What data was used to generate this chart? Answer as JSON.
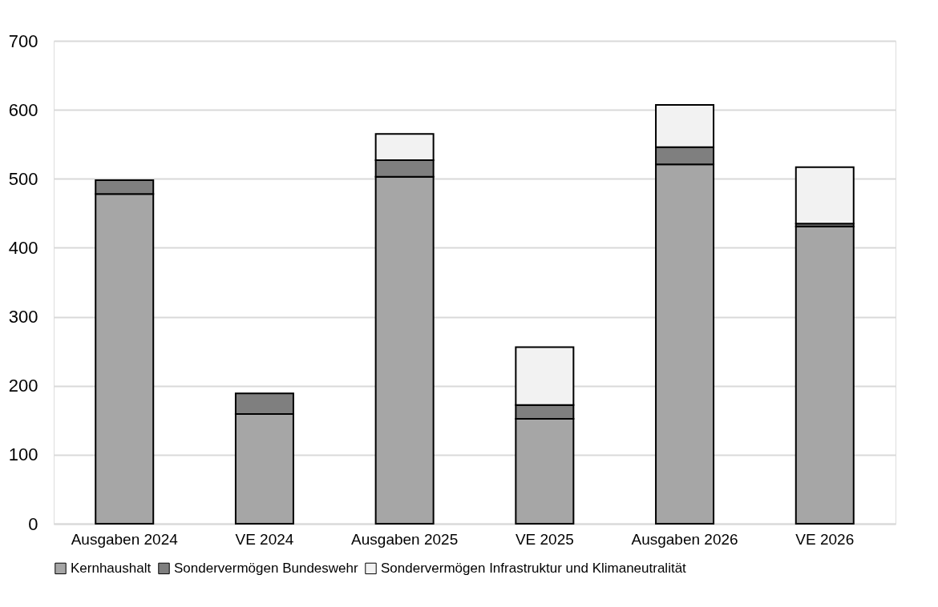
{
  "chart_data": {
    "type": "bar",
    "stacked": true,
    "categories": [
      "Ausgaben 2024",
      "VE 2024",
      "Ausgaben 2025",
      "VE 2025",
      "Ausgaben 2026",
      "VE 2026"
    ],
    "series": [
      {
        "name": "Kernhaushalt",
        "color": "#a6a6a6",
        "values": [
          478,
          159,
          503,
          152,
          521,
          431
        ]
      },
      {
        "name": "Sondervermögen Bundeswehr",
        "color": "#7f7f7f",
        "values": [
          20,
          30,
          24,
          20,
          25,
          4
        ]
      },
      {
        "name": "Sondervermögen Infrastruktur und Klimaneutralität",
        "color": "#f2f2f2",
        "values": [
          null,
          null,
          38,
          84,
          61,
          82
        ]
      }
    ],
    "ylim": [
      0,
      700
    ],
    "yticks": [
      0,
      100,
      200,
      300,
      400,
      500,
      600,
      700
    ],
    "grid": "y",
    "legend": "bottom"
  }
}
